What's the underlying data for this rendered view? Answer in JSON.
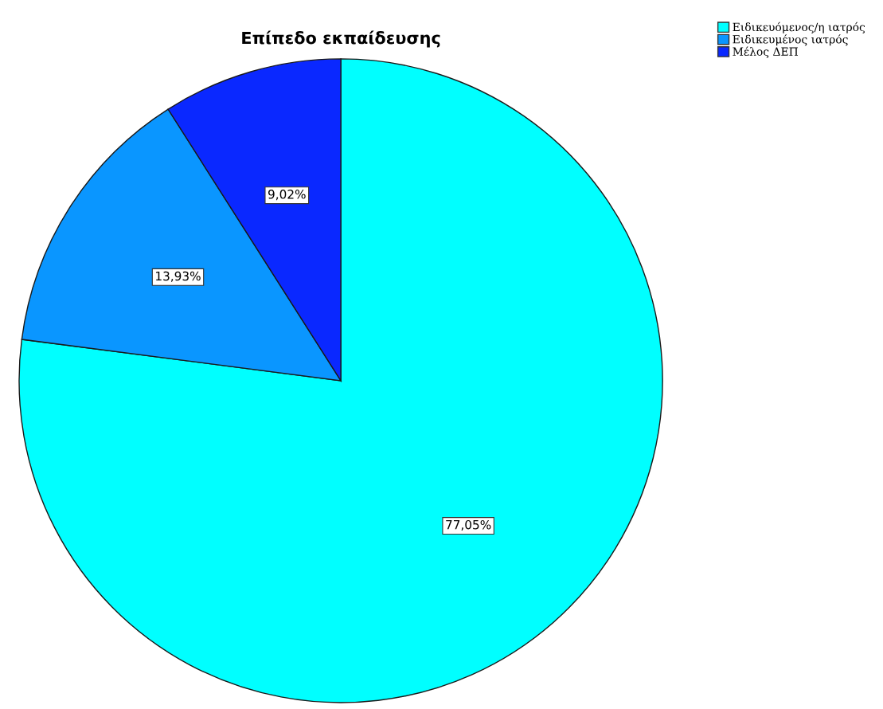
{
  "chart_data": {
    "type": "pie",
    "title": "Επίπεδο εκπαίδευσης",
    "categories": [
      "Ειδικευόμενος/η ιατρός",
      "Ειδικευμένος ιατρός",
      "Μέλος ΔΕΠ"
    ],
    "values": [
      77.05,
      13.93,
      9.02
    ],
    "value_labels": [
      "77,05%",
      "13,93%",
      "9,02%"
    ],
    "colors": [
      "#00ffff",
      "#0a96ff",
      "#0a28ff"
    ],
    "legend": "top right"
  }
}
